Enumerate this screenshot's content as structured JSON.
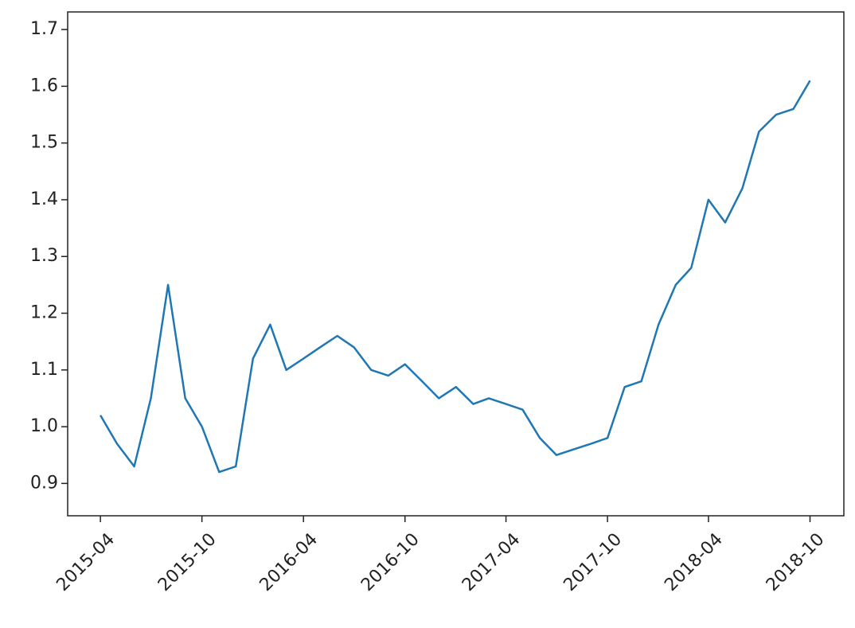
{
  "chart_data": {
    "type": "line",
    "x": [
      "2015-04",
      "2015-05",
      "2015-06",
      "2015-07",
      "2015-08",
      "2015-09",
      "2015-10",
      "2015-11",
      "2015-12",
      "2016-01",
      "2016-02",
      "2016-03",
      "2016-04",
      "2016-05",
      "2016-06",
      "2016-07",
      "2016-08",
      "2016-09",
      "2016-10",
      "2016-11",
      "2016-12",
      "2017-01",
      "2017-02",
      "2017-03",
      "2017-04",
      "2017-05",
      "2017-06",
      "2017-07",
      "2017-08",
      "2017-09",
      "2017-10",
      "2017-11",
      "2017-12",
      "2018-01",
      "2018-02",
      "2018-03",
      "2018-04",
      "2018-05",
      "2018-06",
      "2018-07",
      "2018-08",
      "2018-09",
      "2018-10"
    ],
    "series": [
      {
        "color": "#1f77b4",
        "values": [
          1.02,
          0.97,
          0.93,
          1.05,
          1.25,
          1.05,
          1.0,
          0.92,
          0.93,
          1.12,
          1.18,
          1.1,
          1.12,
          1.14,
          1.16,
          1.14,
          1.1,
          1.09,
          1.11,
          1.08,
          1.05,
          1.07,
          1.04,
          1.05,
          1.04,
          1.03,
          0.98,
          0.95,
          0.96,
          0.97,
          0.98,
          1.07,
          1.08,
          1.18,
          1.25,
          1.28,
          1.4,
          1.36,
          1.42,
          1.52,
          1.55,
          1.56,
          1.61
        ]
      }
    ],
    "xlim": [
      "2015-02",
      "2018-12"
    ],
    "xticks": [
      "2015-04",
      "2015-10",
      "2016-04",
      "2016-10",
      "2017-04",
      "2017-10",
      "2018-04",
      "2018-10"
    ],
    "ylim": [
      0.843,
      1.731
    ],
    "yticks": [
      0.9,
      {
        "value": 1.0,
        "label": "1.0"
      },
      1.1,
      1.2,
      1.3,
      1.4,
      1.5,
      1.6,
      1.7
    ]
  }
}
